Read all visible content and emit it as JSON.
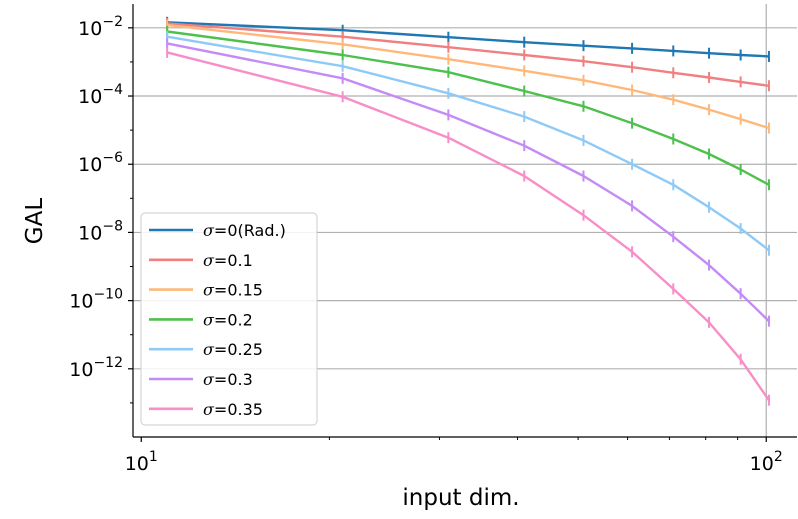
{
  "chart_data": {
    "type": "line",
    "xlabel": "input dim.",
    "ylabel": "GAL",
    "x_scale": "log",
    "y_scale": "log",
    "xlim": [
      9.7,
      112
    ],
    "ylim": [
      1e-14,
      0.05
    ],
    "x_ticks": [
      {
        "value": 10,
        "base": "10",
        "exp": "1"
      },
      {
        "value": 100,
        "base": "10",
        "exp": "2"
      }
    ],
    "y_ticks": [
      {
        "value": 0.01,
        "base": "10",
        "exp": "−2"
      },
      {
        "value": 0.0001,
        "base": "10",
        "exp": "−4"
      },
      {
        "value": 1e-06,
        "base": "10",
        "exp": "−6"
      },
      {
        "value": 1e-08,
        "base": "10",
        "exp": "−8"
      },
      {
        "value": 1e-10,
        "base": "10",
        "exp": "−10"
      },
      {
        "value": 1e-12,
        "base": "10",
        "exp": "−12"
      }
    ],
    "grid": {
      "horizontal": "major",
      "vertical": "x=100"
    },
    "legend_position": "lower-left",
    "x": [
      11,
      21,
      31,
      41,
      51,
      61,
      71,
      81,
      91,
      101
    ],
    "series": [
      {
        "name_symbol": "σ",
        "name_rest": "=0(Rad.)",
        "color": "#1f77b4",
        "values": [
          0.0145,
          0.0085,
          0.0053,
          0.0038,
          0.003,
          0.0025,
          0.0021,
          0.0018,
          0.0016,
          0.00145
        ]
      },
      {
        "name_symbol": "σ",
        "name_rest": "=0.1",
        "color": "#f08080",
        "values": [
          0.0135,
          0.0055,
          0.0027,
          0.0016,
          0.00105,
          0.0007,
          0.00048,
          0.00035,
          0.00026,
          0.0002
        ]
      },
      {
        "name_symbol": "σ",
        "name_rest": "=0.15",
        "color": "#ffb87a",
        "values": [
          0.012,
          0.0033,
          0.0012,
          0.00055,
          0.00029,
          0.00015,
          7.8e-05,
          4e-05,
          2.1e-05,
          1.15e-05
        ]
      },
      {
        "name_symbol": "σ",
        "name_rest": "=0.2",
        "color": "#4dc04d",
        "values": [
          0.0078,
          0.0016,
          0.0005,
          0.00014,
          5e-05,
          1.6e-05,
          5.5e-06,
          2e-06,
          7e-07,
          2.5e-07
        ]
      },
      {
        "name_symbol": "σ",
        "name_rest": "=0.25",
        "color": "#8fcaf7",
        "values": [
          0.0055,
          0.00075,
          0.00012,
          2.5e-05,
          5e-06,
          1e-06,
          2.5e-07,
          5.5e-08,
          1.3e-08,
          3e-09
        ]
      },
      {
        "name_symbol": "σ",
        "name_rest": "=0.3",
        "color": "#c48af5",
        "values": [
          0.0035,
          0.00033,
          2.8e-05,
          3.5e-06,
          4.5e-07,
          6e-08,
          7.5e-09,
          1.1e-09,
          1.6e-10,
          2.5e-11
        ]
      },
      {
        "name_symbol": "σ",
        "name_rest": "=0.35",
        "color": "#f78ec7",
        "values": [
          0.0019,
          9.5e-05,
          6e-06,
          4.5e-07,
          3.2e-08,
          2.7e-09,
          2.2e-10,
          2.3e-11,
          1.9e-12,
          1.2e-13
        ]
      }
    ]
  }
}
